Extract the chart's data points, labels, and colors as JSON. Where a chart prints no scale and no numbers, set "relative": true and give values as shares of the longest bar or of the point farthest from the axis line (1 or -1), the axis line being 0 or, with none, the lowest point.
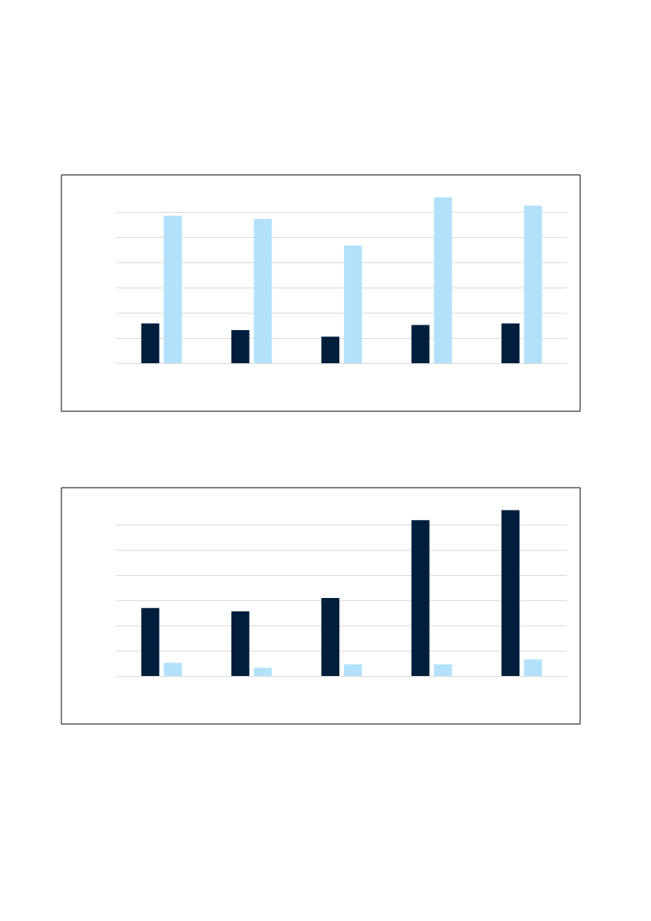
{
  "chart_data": [
    {
      "type": "bar",
      "relative": true,
      "categories": [
        null,
        null,
        null,
        null,
        null
      ],
      "grid": "y",
      "series": [
        {
          "color": "#011e3c",
          "values": [
            0.24,
            0.2,
            0.16,
            0.23,
            0.24
          ]
        },
        {
          "color": "#b3e1fc",
          "values": [
            0.89,
            0.87,
            0.71,
            1,
            0.95
          ]
        }
      ]
    },
    {
      "type": "bar",
      "relative": true,
      "categories": [
        null,
        null,
        null,
        null,
        null
      ],
      "grid": "y",
      "series": [
        {
          "color": "#011e3c",
          "values": [
            0.41,
            0.39,
            0.47,
            0.94,
            1
          ]
        },
        {
          "color": "#b3e1fc",
          "values": [
            0.08,
            0.05,
            0.07,
            0.07,
            0.1
          ]
        }
      ]
    }
  ]
}
